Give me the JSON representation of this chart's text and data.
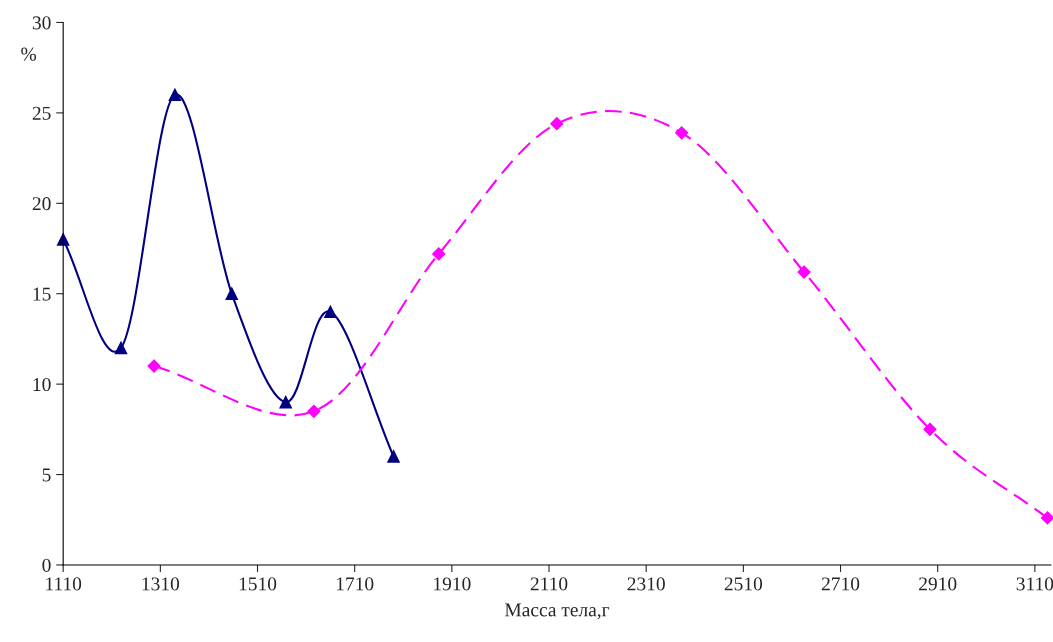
{
  "chart_data": {
    "type": "line",
    "xlabel": "Масса тела,г",
    "ylabel": "%",
    "xlim": [
      1110,
      3143
    ],
    "xticks": [
      1110,
      1310,
      1510,
      1710,
      1910,
      2110,
      2310,
      2510,
      2710,
      2910,
      3110
    ],
    "ylim": [
      0,
      30
    ],
    "yticks": [
      0,
      5,
      10,
      15,
      20,
      25,
      30
    ],
    "grid": false,
    "series": [
      {
        "color": "#000080",
        "marker": "triangle",
        "line_style": "solid",
        "x": [
          1110,
          1229,
          1340,
          1457,
          1568,
          1660,
          1790
        ],
        "values": [
          18,
          12,
          26,
          15,
          9,
          14,
          6
        ]
      },
      {
        "color": "#ff00ff",
        "marker": "diamond",
        "line_style": "dashed",
        "x": [
          1297,
          1626,
          1883,
          2126,
          2383,
          2635,
          2894,
          3136
        ],
        "values": [
          11,
          8.5,
          17.2,
          24.4,
          23.9,
          16.2,
          7.5,
          2.6
        ]
      }
    ]
  }
}
